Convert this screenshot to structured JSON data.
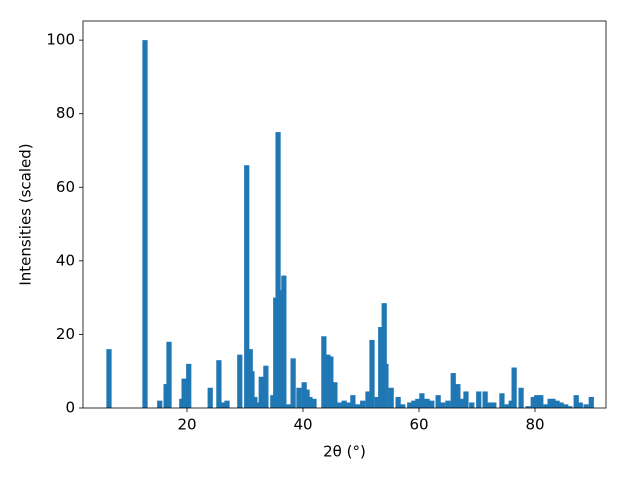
{
  "chart_data": {
    "type": "bar",
    "xlabel": "2θ (°)",
    "ylabel": "Intensities (scaled)",
    "color": "#1f77b4",
    "x": [
      6.55,
      12.76,
      15.3,
      16.4,
      16.9,
      19.1,
      19.5,
      20.3,
      24.0,
      25.5,
      26.2,
      26.9,
      29.1,
      30.3,
      30.9,
      31.2,
      31.7,
      32.1,
      32.8,
      33.6,
      34.8,
      35.3,
      35.7,
      36.4,
      36.7,
      37.4,
      38.3,
      39.3,
      40.2,
      40.7,
      41.2,
      41.9,
      43.6,
      44.3,
      44.8,
      45.5,
      46.4,
      47.1,
      47.8,
      48.6,
      49.5,
      50.3,
      51.2,
      51.9,
      52.8,
      53.4,
      54.0,
      54.3,
      55.2,
      56.4,
      57.2,
      58.4,
      59.1,
      59.8,
      60.5,
      61.4,
      62.2,
      63.3,
      64.1,
      65.0,
      65.9,
      66.7,
      67.4,
      68.1,
      69.1,
      70.3,
      71.4,
      72.2,
      72.9,
      74.3,
      75.2,
      75.9,
      76.4,
      77.6,
      78.8,
      79.7,
      80.3,
      81.0,
      81.9,
      82.6,
      83.1,
      83.8,
      84.5,
      85.3,
      86.0,
      87.1,
      87.8,
      88.8,
      89.7
    ],
    "values": [
      16,
      100,
      2,
      6.5,
      18,
      2.5,
      8,
      12,
      5.5,
      13,
      1.5,
      2,
      14.5,
      66,
      16,
      10,
      3,
      1.5,
      8.5,
      11.5,
      3.5,
      30,
      75,
      32,
      36,
      1,
      13.5,
      5.5,
      7,
      5,
      3,
      2.5,
      19.5,
      14.5,
      14,
      7,
      1.5,
      2,
      1.5,
      3.5,
      1,
      2,
      4.5,
      18.5,
      3,
      22,
      28.5,
      12,
      5.5,
      3,
      1,
      1.5,
      2,
      2.5,
      4,
      2.5,
      2,
      3.5,
      1.5,
      2,
      9.5,
      6.5,
      2.5,
      4.5,
      1.5,
      4.5,
      4.5,
      1.5,
      1.5,
      4,
      1,
      2,
      11,
      5.5,
      0.5,
      3,
      3.5,
      3.5,
      1,
      2.5,
      2.5,
      2,
      1.5,
      1,
      0.5,
      3.5,
      1.5,
      1,
      3
    ],
    "xlim": [
      2.07,
      92.24
    ],
    "ylim": [
      0,
      105.2
    ],
    "xticks": [
      20,
      40,
      60,
      80
    ],
    "yticks": [
      0,
      20,
      40,
      60,
      80,
      100
    ]
  }
}
